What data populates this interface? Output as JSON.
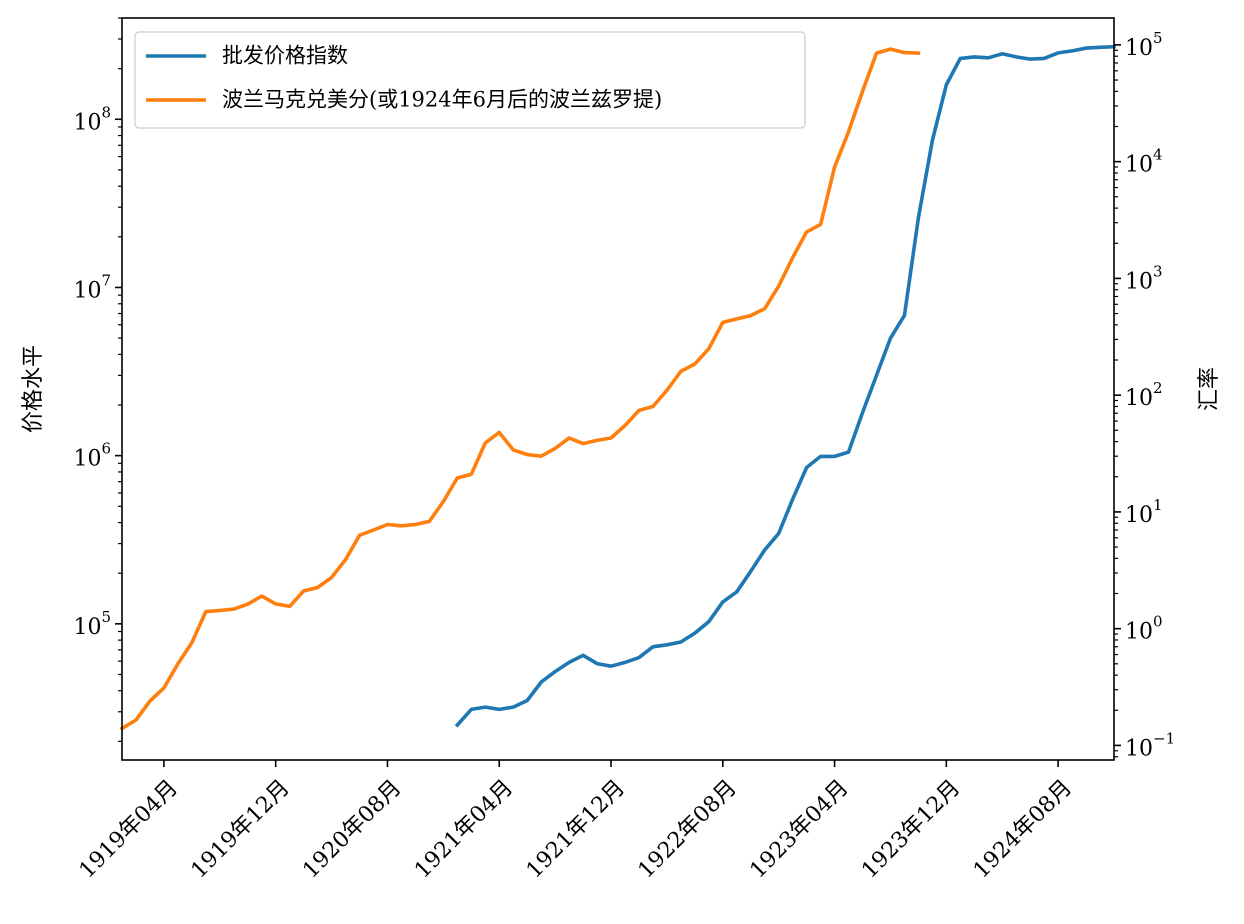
{
  "chart_data": {
    "type": "line",
    "title": "",
    "xlabel": "",
    "ylabel_left": "价格水平",
    "ylabel_right": "汇率",
    "x_axis": {
      "type": "date",
      "range": [
        "1919-01",
        "1924-12"
      ],
      "ticks": [
        "1919-04",
        "1919-12",
        "1920-08",
        "1921-04",
        "1921-12",
        "1922-08",
        "1923-04",
        "1923-12",
        "1924-08"
      ],
      "tick_labels": [
        "1919年04月",
        "1919年12月",
        "1920年08月",
        "1921年04月",
        "1921年12月",
        "1922年08月",
        "1923年04月",
        "1923年12月",
        "1924年08月"
      ]
    },
    "y_left": {
      "scale": "log",
      "range": [
        15500,
        400000000
      ],
      "ticks": [
        {
          "value": 100000,
          "base": "10",
          "exp": "5"
        },
        {
          "value": 1000000,
          "base": "10",
          "exp": "6"
        },
        {
          "value": 10000000,
          "base": "10",
          "exp": "7"
        },
        {
          "value": 100000000,
          "base": "10",
          "exp": "8"
        }
      ]
    },
    "y_right": {
      "scale": "log",
      "range": [
        0.075,
        170000
      ],
      "ticks": [
        {
          "value": 0.1,
          "base": "10",
          "exp": "−1"
        },
        {
          "value": 1,
          "base": "10",
          "exp": "0"
        },
        {
          "value": 10,
          "base": "10",
          "exp": "1"
        },
        {
          "value": 100,
          "base": "10",
          "exp": "2"
        },
        {
          "value": 1000,
          "base": "10",
          "exp": "3"
        },
        {
          "value": 10000,
          "base": "10",
          "exp": "4"
        },
        {
          "value": 100000,
          "base": "10",
          "exp": "5"
        }
      ]
    },
    "legend": {
      "placement": "top-left"
    },
    "series": [
      {
        "name": "批发价格指数",
        "axis": "left",
        "color": "#1f77b4",
        "points": [
          [
            "1921-01",
            25000
          ],
          [
            "1921-02",
            31000
          ],
          [
            "1921-03",
            32000
          ],
          [
            "1921-04",
            31000
          ],
          [
            "1921-05",
            32000
          ],
          [
            "1921-06",
            35000
          ],
          [
            "1921-07",
            45000
          ],
          [
            "1921-08",
            52000
          ],
          [
            "1921-09",
            59000
          ],
          [
            "1921-10",
            65000
          ],
          [
            "1921-11",
            58000
          ],
          [
            "1921-12",
            56000
          ],
          [
            "1922-01",
            59000
          ],
          [
            "1922-02",
            63000
          ],
          [
            "1922-03",
            73000
          ],
          [
            "1922-04",
            75000
          ],
          [
            "1922-05",
            78000
          ],
          [
            "1922-06",
            88000
          ],
          [
            "1922-07",
            103000
          ],
          [
            "1922-08",
            135000
          ],
          [
            "1922-09",
            155000
          ],
          [
            "1922-10",
            205000
          ],
          [
            "1922-11",
            275000
          ],
          [
            "1922-12",
            345000
          ],
          [
            "1923-01",
            550000
          ],
          [
            "1923-02",
            850000
          ],
          [
            "1923-03",
            990000
          ],
          [
            "1923-04",
            990000
          ],
          [
            "1923-05",
            1050000
          ],
          [
            "1923-06",
            1800000
          ],
          [
            "1923-07",
            3000000
          ],
          [
            "1923-08",
            5000000
          ],
          [
            "1923-09",
            6800000
          ],
          [
            "1923-10",
            26000000
          ],
          [
            "1923-11",
            75000000
          ],
          [
            "1923-12",
            160000000
          ],
          [
            "1924-01",
            230000000
          ],
          [
            "1924-02",
            235000000
          ],
          [
            "1924-03",
            232000000
          ],
          [
            "1924-04",
            245000000
          ],
          [
            "1924-05",
            235000000
          ],
          [
            "1924-06",
            228000000
          ],
          [
            "1924-07",
            230000000
          ],
          [
            "1924-08",
            248000000
          ],
          [
            "1924-09",
            255000000
          ],
          [
            "1924-10",
            265000000
          ],
          [
            "1924-11",
            268000000
          ],
          [
            "1924-12",
            270000000
          ]
        ]
      },
      {
        "name": "波兰马克兑美分(或1924年6月后的波兰兹罗提)",
        "axis": "right",
        "color": "#ff7f0e",
        "points": [
          [
            "1919-01",
            0.14
          ],
          [
            "1919-02",
            0.165
          ],
          [
            "1919-03",
            0.24
          ],
          [
            "1919-04",
            0.31
          ],
          [
            "1919-05",
            0.5
          ],
          [
            "1919-06",
            0.76
          ],
          [
            "1919-07",
            1.4
          ],
          [
            "1919-08",
            1.43
          ],
          [
            "1919-09",
            1.47
          ],
          [
            "1919-10",
            1.62
          ],
          [
            "1919-11",
            1.9
          ],
          [
            "1919-12",
            1.63
          ],
          [
            "1920-01",
            1.55
          ],
          [
            "1920-02",
            2.1
          ],
          [
            "1920-03",
            2.25
          ],
          [
            "1920-04",
            2.75
          ],
          [
            "1920-05",
            3.9
          ],
          [
            "1920-06",
            6.3
          ],
          [
            "1920-07",
            7.0
          ],
          [
            "1920-08",
            7.8
          ],
          [
            "1920-09",
            7.6
          ],
          [
            "1920-10",
            7.8
          ],
          [
            "1920-11",
            8.3
          ],
          [
            "1920-12",
            12.3
          ],
          [
            "1921-01",
            19.5
          ],
          [
            "1921-02",
            21.0
          ],
          [
            "1921-03",
            39.0
          ],
          [
            "1921-04",
            48.0
          ],
          [
            "1921-05",
            34.0
          ],
          [
            "1921-06",
            31.0
          ],
          [
            "1921-07",
            30.0
          ],
          [
            "1921-08",
            35.0
          ],
          [
            "1921-09",
            43.0
          ],
          [
            "1921-10",
            38.5
          ],
          [
            "1921-11",
            41.0
          ],
          [
            "1921-12",
            43.0
          ],
          [
            "1922-01",
            55.0
          ],
          [
            "1922-02",
            74.0
          ],
          [
            "1922-03",
            80.0
          ],
          [
            "1922-04",
            110.0
          ],
          [
            "1922-05",
            160.0
          ],
          [
            "1922-06",
            185.0
          ],
          [
            "1922-07",
            250.0
          ],
          [
            "1922-08",
            420.0
          ],
          [
            "1922-09",
            450.0
          ],
          [
            "1922-10",
            480.0
          ],
          [
            "1922-11",
            550.0
          ],
          [
            "1922-12",
            860.0
          ],
          [
            "1923-01",
            1500.0
          ],
          [
            "1923-02",
            2500.0
          ],
          [
            "1923-03",
            2900.0
          ],
          [
            "1923-04",
            9000.0
          ],
          [
            "1923-05",
            18000.0
          ],
          [
            "1923-06",
            40000.0
          ],
          [
            "1923-07",
            85000.0
          ],
          [
            "1923-08",
            92000.0
          ],
          [
            "1923-09",
            86000.0
          ],
          [
            "1923-10",
            85000.0
          ]
        ]
      }
    ]
  }
}
